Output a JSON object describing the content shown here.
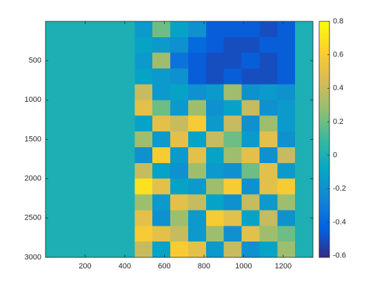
{
  "chart_data": {
    "type": "heatmap",
    "xlim": [
      0,
      1350
    ],
    "ylim": [
      0,
      3000
    ],
    "y_reversed": true,
    "xticks": [
      200,
      400,
      600,
      800,
      1000,
      1200
    ],
    "yticks": [
      500,
      1000,
      1500,
      2000,
      2500,
      3000
    ],
    "colormap": [
      "#352a87",
      "#0363e1",
      "#1485d4",
      "#06a7c6",
      "#38b99e",
      "#92bf73",
      "#d9ba56",
      "#fcce2e",
      "#f9fb0e"
    ],
    "clim": [
      -0.61,
      0.8
    ],
    "cticks": [
      -0.6,
      -0.4,
      -0.2,
      0,
      0.2,
      0.4,
      0.6,
      0.8
    ],
    "values": [
      [
        0,
        0,
        0,
        0,
        0,
        -0.15,
        0.2,
        -0.1,
        -0.2,
        -0.45,
        -0.45,
        -0.45,
        -0.5,
        -0.45,
        0
      ],
      [
        0,
        0,
        0,
        0,
        0,
        -0.1,
        -0.15,
        -0.2,
        -0.4,
        -0.45,
        -0.5,
        -0.5,
        -0.45,
        -0.45,
        0
      ],
      [
        0,
        0,
        0,
        0,
        0,
        -0.15,
        0.3,
        -0.35,
        -0.45,
        -0.5,
        -0.5,
        -0.45,
        -0.5,
        -0.45,
        0
      ],
      [
        0,
        0,
        0,
        0,
        0,
        -0.1,
        -0.15,
        -0.2,
        -0.45,
        -0.5,
        -0.45,
        -0.5,
        -0.5,
        -0.45,
        0
      ],
      [
        0,
        0,
        0,
        0,
        0,
        0.4,
        -0.15,
        -0.1,
        -0.2,
        -0.15,
        0.3,
        -0.2,
        -0.15,
        -0.2,
        0
      ],
      [
        0,
        0,
        0,
        0,
        0,
        0.5,
        0.2,
        -0.15,
        0.3,
        -0.2,
        -0.1,
        0.4,
        -0.2,
        -0.15,
        0
      ],
      [
        0,
        0,
        0,
        0,
        0,
        -0.1,
        0.5,
        0.4,
        0.6,
        -0.15,
        0.4,
        -0.2,
        0.3,
        -0.15,
        0
      ],
      [
        0,
        0,
        0,
        0,
        0,
        0.3,
        -0.15,
        0.5,
        -0.1,
        0.4,
        0.2,
        -0.15,
        0.5,
        -0.2,
        0
      ],
      [
        0,
        0,
        0,
        0,
        0,
        -0.2,
        0.6,
        -0.15,
        0.5,
        -0.1,
        0.3,
        0.5,
        -0.2,
        0.4,
        0
      ],
      [
        0,
        0,
        0,
        0,
        0,
        0.4,
        -0.1,
        -0.2,
        0.3,
        -0.15,
        -0.2,
        0.2,
        0.5,
        -0.15,
        0
      ],
      [
        0,
        0,
        0,
        0,
        0,
        0.7,
        0.5,
        -0.1,
        -0.15,
        0.3,
        0.6,
        -0.2,
        0.5,
        0.6,
        0
      ],
      [
        0,
        0,
        0,
        0,
        0,
        0.3,
        -0.15,
        0.5,
        0.4,
        -0.1,
        -0.2,
        0.4,
        -0.15,
        0.3,
        0
      ],
      [
        0,
        0,
        0,
        0,
        0,
        0.5,
        -0.2,
        0.3,
        -0.15,
        0.6,
        0.5,
        -0.1,
        0.4,
        -0.2,
        0
      ],
      [
        0,
        0,
        0,
        0,
        0,
        0.6,
        0.5,
        0.4,
        -0.15,
        0.3,
        -0.2,
        0.5,
        0.3,
        0.2,
        0
      ],
      [
        0,
        0,
        0,
        0,
        0,
        0.4,
        -0.1,
        0.6,
        0.5,
        -0.15,
        0.4,
        -0.2,
        -0.1,
        0.3,
        0
      ]
    ]
  }
}
